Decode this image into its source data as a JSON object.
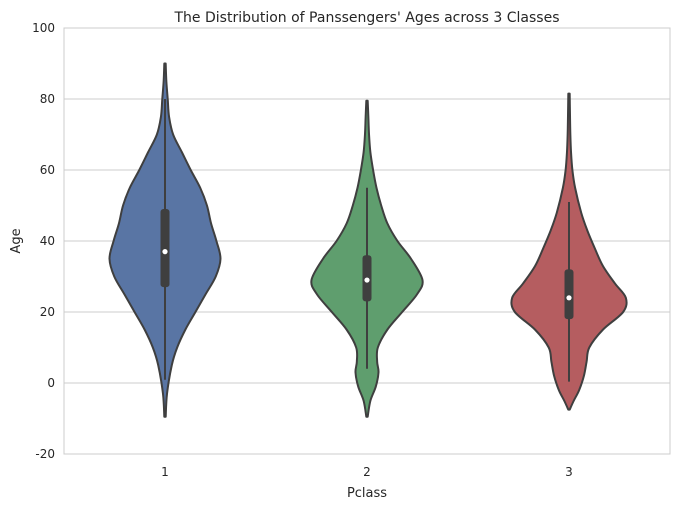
{
  "chart_data": {
    "type": "violin",
    "title": "The Distribution of Panssengers' Ages across 3 Classes",
    "xlabel": "Pclass",
    "ylabel": "Age",
    "ylim": [
      -20,
      100
    ],
    "yticks": [
      -20,
      0,
      20,
      40,
      60,
      80,
      100
    ],
    "grid": true,
    "categories": [
      "1",
      "2",
      "3"
    ],
    "series": [
      {
        "category": "1",
        "color": "#5975a4",
        "min": -9.5,
        "max": 90,
        "whisker_low": 0.9,
        "q1": 27,
        "median": 37,
        "q3": 49,
        "whisker_high": 80,
        "profile_ages": [
          -9.5,
          -3,
          5,
          10,
          15,
          20,
          25,
          30,
          35,
          40,
          45,
          50,
          55,
          60,
          65,
          70,
          75,
          80,
          85,
          90
        ],
        "profile_widths": [
          0.01,
          0.03,
          0.1,
          0.18,
          0.3,
          0.45,
          0.6,
          0.75,
          0.82,
          0.76,
          0.68,
          0.62,
          0.52,
          0.38,
          0.25,
          0.12,
          0.06,
          0.04,
          0.02,
          0.01
        ]
      },
      {
        "category": "2",
        "color": "#5f9e6e",
        "min": -9.5,
        "max": 79.5,
        "whisker_low": 4,
        "q1": 23,
        "median": 29,
        "q3": 36,
        "whisker_high": 55,
        "profile_ages": [
          -9.5,
          -5,
          -1,
          3,
          6,
          10,
          15,
          20,
          25,
          29,
          35,
          40,
          45,
          50,
          55,
          60,
          65,
          70,
          75,
          79.5
        ],
        "profile_widths": [
          0.01,
          0.05,
          0.13,
          0.17,
          0.15,
          0.16,
          0.3,
          0.52,
          0.74,
          0.82,
          0.65,
          0.45,
          0.3,
          0.21,
          0.14,
          0.09,
          0.05,
          0.03,
          0.02,
          0.01
        ]
      },
      {
        "category": "3",
        "color": "#b55d60",
        "min": -7.5,
        "max": 81.5,
        "whisker_low": 0.4,
        "q1": 18,
        "median": 24,
        "q3": 32,
        "whisker_high": 51,
        "profile_ages": [
          -7.5,
          -5,
          -2,
          2,
          6,
          10,
          15,
          20,
          24,
          28,
          33,
          38,
          43,
          48,
          55,
          60,
          65,
          70,
          75,
          81.5
        ],
        "profile_widths": [
          0.01,
          0.07,
          0.15,
          0.22,
          0.26,
          0.3,
          0.5,
          0.8,
          0.84,
          0.68,
          0.5,
          0.38,
          0.27,
          0.18,
          0.09,
          0.05,
          0.03,
          0.02,
          0.015,
          0.01
        ]
      }
    ]
  }
}
